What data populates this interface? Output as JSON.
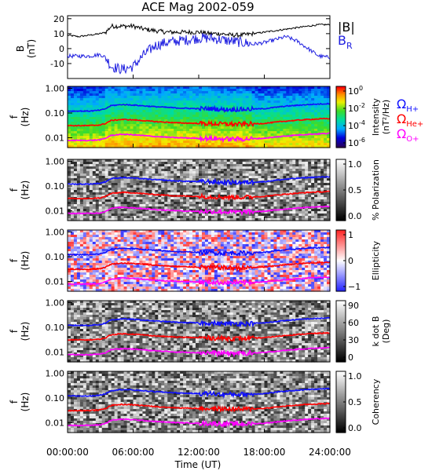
{
  "title": "ACE Mag 2002-059",
  "x_axis": {
    "label": "Time (UT)",
    "ticks": [
      "00:00:00",
      "06:00:00",
      "12:00:00",
      "18:00:00",
      "24:00:00"
    ],
    "range_hours": [
      0,
      24
    ]
  },
  "freq_axis": {
    "label_line1": "f",
    "label_line2": "(Hz)",
    "ticks": [
      "1.00",
      "0.10",
      "0.01"
    ],
    "log": true,
    "range": [
      0.004,
      1.2
    ]
  },
  "legend": {
    "abs_b": "|B|",
    "b_r_main": "B",
    "b_r_sub": "R",
    "omega_h_main": "Ω",
    "omega_h_sub": "H+",
    "omega_he_main": "Ω",
    "omega_he_sub": "He+",
    "omega_o_main": "Ω",
    "omega_o_sub": "O+"
  },
  "colors": {
    "abs_b": "#000000",
    "b_r": "#2020e0",
    "omega_h": "#1010ff",
    "omega_he": "#ff0000",
    "omega_o": "#ff00ff"
  },
  "panels": [
    {
      "name": "intensity",
      "colorbar": "rainbow",
      "label_line1": "Intensity",
      "label_line2": "(nT²/Hz)",
      "cb_ticks": [
        {
          "main": "10",
          "exp": "0"
        },
        {
          "main": "10",
          "exp": "-2"
        },
        {
          "main": "10",
          "exp": "-4"
        },
        {
          "main": "10",
          "exp": "-6"
        }
      ]
    },
    {
      "name": "polarization",
      "colorbar": "gray",
      "label_line1": "% Polarization",
      "label_line2": "",
      "cb_ticks": [
        {
          "main": "1.0",
          "exp": ""
        },
        {
          "main": "0.5",
          "exp": ""
        },
        {
          "main": "0.0",
          "exp": ""
        }
      ]
    },
    {
      "name": "ellipticity",
      "colorbar": "redblue",
      "label_line1": "Ellipticity",
      "label_line2": "",
      "cb_ticks": [
        {
          "main": "1",
          "exp": ""
        },
        {
          "main": "0",
          "exp": ""
        },
        {
          "main": "−1",
          "exp": ""
        }
      ]
    },
    {
      "name": "kdotb",
      "colorbar": "gray",
      "label_line1": "k dot B",
      "label_line2": "(Deg)",
      "cb_ticks": [
        {
          "main": "90",
          "exp": ""
        },
        {
          "main": "60",
          "exp": ""
        },
        {
          "main": "30",
          "exp": ""
        },
        {
          "main": "0",
          "exp": ""
        }
      ]
    },
    {
      "name": "coherency",
      "colorbar": "gray",
      "label_line1": "Coherency",
      "label_line2": "",
      "cb_ticks": [
        {
          "main": "1.0",
          "exp": ""
        },
        {
          "main": "0.5",
          "exp": ""
        },
        {
          "main": "0.0",
          "exp": ""
        }
      ]
    }
  ],
  "chart_data": {
    "type": "line",
    "title": "ACE Mag 2002-059",
    "xlabel": "Time (UT)",
    "field_panel": {
      "ylabel": "B (nT)",
      "yticks": [
        "20",
        "10",
        "0",
        "-10"
      ],
      "ylim": [
        -20,
        22
      ],
      "series": [
        {
          "name": "|B|",
          "x": [
            0,
            1,
            2,
            3,
            3.5,
            4,
            5,
            6,
            7,
            8,
            9,
            10,
            11,
            12,
            13,
            14,
            15,
            16,
            17,
            18,
            19,
            20,
            21,
            22,
            23,
            24
          ],
          "y": [
            9,
            8,
            9,
            10,
            11,
            15,
            15,
            15,
            13,
            12,
            11,
            11,
            11,
            11,
            10,
            10,
            9,
            9,
            10,
            11,
            12,
            13,
            14,
            15,
            16,
            16
          ]
        },
        {
          "name": "B_R",
          "x": [
            0,
            1,
            2,
            3,
            3.5,
            4,
            5,
            6,
            7,
            8,
            9,
            10,
            11,
            12,
            13,
            14,
            15,
            16,
            17,
            18,
            19,
            20,
            21,
            22,
            23,
            24
          ],
          "y": [
            -5,
            -5,
            -5,
            -4,
            -6,
            -12,
            -14,
            -12,
            -4,
            2,
            4,
            5,
            6,
            7,
            7,
            6,
            5,
            4,
            3,
            4,
            6,
            8,
            5,
            0,
            -5,
            -6
          ]
        }
      ]
    },
    "gyrofrequency_lines": [
      {
        "name": "Ω H+",
        "x": [
          0,
          1,
          2,
          3,
          3.5,
          4,
          5,
          6,
          8,
          10,
          12,
          13,
          14,
          16,
          18,
          20,
          22,
          24
        ],
        "y": [
          0.12,
          0.12,
          0.12,
          0.13,
          0.15,
          0.2,
          0.22,
          0.21,
          0.18,
          0.16,
          0.15,
          0.15,
          0.14,
          0.14,
          0.15,
          0.19,
          0.22,
          0.24
        ]
      },
      {
        "name": "Ω He+",
        "x": [
          0,
          1,
          2,
          3,
          3.5,
          4,
          5,
          6,
          8,
          10,
          12,
          13,
          14,
          16,
          18,
          20,
          22,
          24
        ],
        "y": [
          0.031,
          0.031,
          0.031,
          0.033,
          0.038,
          0.05,
          0.055,
          0.053,
          0.045,
          0.04,
          0.038,
          0.037,
          0.036,
          0.035,
          0.038,
          0.047,
          0.055,
          0.06
        ]
      },
      {
        "name": "Ω O+",
        "x": [
          0,
          1,
          2,
          3,
          3.5,
          4,
          5,
          6,
          8,
          10,
          12,
          13,
          14,
          16,
          18,
          20,
          22,
          24
        ],
        "y": [
          0.0078,
          0.0078,
          0.0078,
          0.0082,
          0.0095,
          0.0125,
          0.0138,
          0.0132,
          0.0112,
          0.01,
          0.0095,
          0.0093,
          0.009,
          0.0088,
          0.0095,
          0.0118,
          0.0138,
          0.015
        ]
      }
    ],
    "ylim_freq": [
      0.004,
      1.2
    ],
    "y_scale": "log"
  }
}
